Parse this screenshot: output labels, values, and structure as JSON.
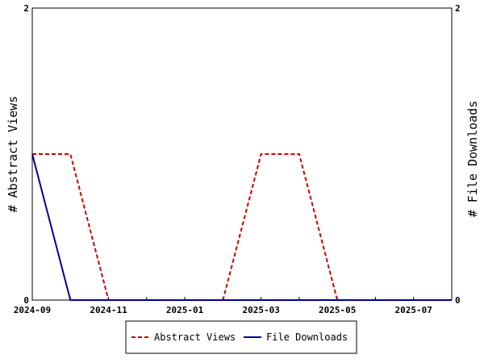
{
  "chart_data": {
    "type": "line",
    "x_dates": [
      "2024-09",
      "2024-10",
      "2024-11",
      "2024-12",
      "2025-01",
      "2025-02",
      "2025-03",
      "2025-04",
      "2025-05",
      "2025-06",
      "2025-07",
      "2025-08"
    ],
    "x_tick_labels": [
      "2024-09",
      "2024-11",
      "2025-01",
      "2025-03",
      "2025-05",
      "2025-07"
    ],
    "series": [
      {
        "name": "Abstract Views",
        "axis": "left",
        "color": "#cc0000",
        "dash": "dashed",
        "values": [
          1,
          1,
          0,
          0,
          0,
          0,
          1,
          1,
          0,
          0,
          0,
          0
        ]
      },
      {
        "name": "File Downloads",
        "axis": "right",
        "color": "#000099",
        "dash": "solid",
        "values": [
          1,
          0,
          0,
          0,
          0,
          0,
          0,
          0,
          0,
          0,
          0,
          0
        ]
      }
    ],
    "ylabel_left": "# Abstract Views",
    "ylabel_right": "# File Downloads",
    "ylim_left": [
      0,
      2
    ],
    "ylim_right": [
      0,
      2
    ],
    "y_ticks_left": [
      "0",
      "2"
    ],
    "y_ticks_right": [
      "0",
      "2"
    ],
    "legend_placement": "bottom-center",
    "grid": false
  }
}
